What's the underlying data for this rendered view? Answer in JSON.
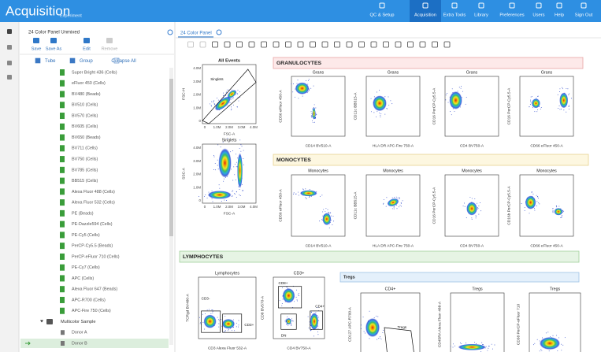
{
  "header": {
    "app_title": "Acquisition",
    "app_subtitle": "Experiment",
    "nav": [
      "QC & Setup",
      "Acquisition",
      "Extra Tools",
      "Library",
      "Preferences",
      "Users",
      "Help",
      "Sign Out"
    ],
    "active_nav": 1
  },
  "panel": {
    "title": "24 Color Panel Unmixed",
    "actions": [
      "Save",
      "Save As",
      "Edit",
      "Remove"
    ],
    "disabled_actions": [
      3
    ],
    "controls": [
      "Tube",
      "Group",
      "Collapse All"
    ],
    "tubes": [
      "Super Bright 436 (Cells)",
      "eFluor 450 (Cells)",
      "BV480 (Beads)",
      "BV510 (Cells)",
      "BV570 (Cells)",
      "BV605 (Cells)",
      "BV650 (Beads)",
      "BV711 (Cells)",
      "BV750 (Cells)",
      "BV785 (Cells)",
      "BB515 (Cells)",
      "Alexa Fluor 488 (Cells)",
      "Alexa Fluor 532 (Cells)",
      "PE (Beads)",
      "PE-Dazzle594 (Cells)",
      "PE-Cy5 (Cells)",
      "PerCP-Cy5.5 (Beads)",
      "PerCP-eFluor 710 (Cells)",
      "PE-Cy7 (Cells)",
      "APC (Cells)",
      "Alexa Fluor 647 (Beads)",
      "APC-R700 (Cells)",
      "APC-Fire 750 (Cells)"
    ],
    "group": "Multicolor Sample",
    "samples": [
      "Donor A",
      "Donor B"
    ],
    "selected_sample": 1
  },
  "worksheet": {
    "tab": "24 Color Panel",
    "sections": [
      "GRANULOCYTES",
      "MONOCYTES",
      "LYMPHOCYTES",
      "Tregs"
    ],
    "plots": [
      {
        "title": "All Events",
        "x_label": "FSC-A",
        "y_label": "FSC-H",
        "gates": [
          "Singlets"
        ],
        "x_ticks": [
          "0",
          "1.0M",
          "2.0M",
          "3.0M",
          "4.0M"
        ],
        "y_ticks": [
          "0",
          "1.0M",
          "2.0M",
          "3.0M",
          "4.0M"
        ]
      },
      {
        "title": "Singlets",
        "x_label": "FSC-A",
        "y_label": "SSC-A",
        "gates": [],
        "x_ticks": [
          "0",
          "1.0M",
          "2.0M",
          "3.0M",
          "4.0M"
        ],
        "y_ticks": [
          "0",
          "1.0M",
          "2.0M",
          "3.0M",
          "4.0M"
        ]
      },
      {
        "title": "Grans",
        "x_label": "CD14 BV510-A",
        "y_label": "CD56 eFluor 450-A",
        "gates": []
      },
      {
        "title": "Grans",
        "x_label": "HLA DR APC-Fire 750-A",
        "y_label": "CD11c BB515-A",
        "gates": []
      },
      {
        "title": "Grans",
        "x_label": "CD4 BV750-A",
        "y_label": "CD16 PerCP-Cy5.5-A",
        "gates": []
      },
      {
        "title": "Grans",
        "x_label": "CD66 eFluor 450-A",
        "y_label": "CD16 PerCP-Cy5.5-A",
        "gates": []
      },
      {
        "title": "Monocytes",
        "x_label": "CD14 BV510-A",
        "y_label": "CD56 eFluor 450-A",
        "gates": []
      },
      {
        "title": "Monocytes",
        "x_label": "HLA DR APC-Fire 750-A",
        "y_label": "CD11c BB515-A",
        "gates": []
      },
      {
        "title": "Monocytes",
        "x_label": "CD4 BV750-A",
        "y_label": "CD16 PerCP-Cy5.5-A",
        "gates": []
      },
      {
        "title": "Monocytes",
        "x_label": "CD66 eFluor 450-A",
        "y_label": "CD16b PerCP-Cy5.5-A",
        "gates": []
      },
      {
        "title": "Lymphocytes",
        "x_label": "CD3 Alexa Fluor 532-A",
        "y_label": "TCRgd BV480-A",
        "gates": [
          "CD3-",
          "CD3+"
        ]
      },
      {
        "title": "CD3+",
        "x_label": "CD4 BV750-A",
        "y_label": "CD8 BV570-A",
        "gates": [
          "CD8+",
          "DN",
          "CD4+"
        ]
      },
      {
        "title": "CD4+",
        "x_label": "",
        "y_label": "CD127 APC-R700-A",
        "gates": [
          "Tregs"
        ]
      },
      {
        "title": "Tregs",
        "x_label": "",
        "y_label": "CD45RA Alexa Fluor 488-A",
        "gates": []
      },
      {
        "title": "Tregs",
        "x_label": "",
        "y_label": "CD38 PerCP-eFluor 710",
        "gates": []
      }
    ]
  }
}
